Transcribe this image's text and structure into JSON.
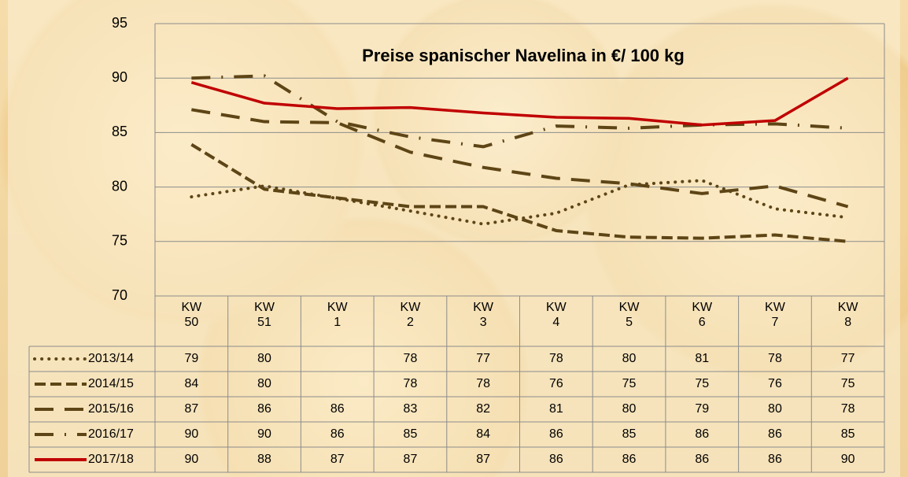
{
  "chart_data": {
    "type": "line",
    "title": "Preise spanischer Navelina in €/ 100 kg",
    "categories": [
      "KW 50",
      "KW 51",
      "KW 1",
      "KW 2",
      "KW 3",
      "KW 4",
      "KW 5",
      "KW 6",
      "KW 7",
      "KW 8"
    ],
    "ylim": [
      70,
      95
    ],
    "yticks": [
      70,
      75,
      80,
      85,
      90,
      95
    ],
    "grid": true,
    "connect_gaps": true,
    "data_table": true,
    "series": [
      {
        "name": "2013/14",
        "color": "#5e4516",
        "dash": "dotted",
        "values": [
          79.1,
          80.1,
          null,
          77.8,
          76.6,
          77.6,
          80.2,
          80.6,
          78.0,
          77.2
        ],
        "value_labels": [
          "79",
          "80",
          null,
          "78",
          "77",
          "78",
          "80",
          "81",
          "78",
          "77"
        ]
      },
      {
        "name": "2014/15",
        "color": "#5e4516",
        "dash": "dashed",
        "values": [
          83.9,
          79.8,
          null,
          78.2,
          78.2,
          76.0,
          75.4,
          75.3,
          75.6,
          75.0
        ],
        "value_labels": [
          "84",
          "80",
          null,
          "78",
          "78",
          "76",
          "75",
          "75",
          "76",
          "75"
        ]
      },
      {
        "name": "2015/16",
        "color": "#5e4516",
        "dash": "long-dash",
        "values": [
          87.1,
          86.0,
          85.9,
          83.2,
          81.8,
          80.8,
          80.3,
          79.4,
          80.1,
          78.2
        ],
        "value_labels": [
          "87",
          "86",
          "86",
          "83",
          "82",
          "81",
          "80",
          "79",
          "80",
          "78"
        ]
      },
      {
        "name": "2016/17",
        "color": "#5e4516",
        "dash": "long-dash-dot",
        "values": [
          90.0,
          90.2,
          86.0,
          84.6,
          83.7,
          85.6,
          85.4,
          85.7,
          85.8,
          85.4
        ],
        "value_labels": [
          "90",
          "90",
          "86",
          "85",
          "84",
          "86",
          "85",
          "86",
          "86",
          "85"
        ]
      },
      {
        "name": "2017/18",
        "color": "#c00000",
        "dash": "solid",
        "values": [
          89.6,
          87.7,
          87.2,
          87.3,
          86.8,
          86.4,
          86.3,
          85.7,
          86.1,
          90.0
        ],
        "value_labels": [
          "90",
          "88",
          "87",
          "87",
          "87",
          "86",
          "86",
          "86",
          "86",
          "90"
        ]
      }
    ]
  }
}
